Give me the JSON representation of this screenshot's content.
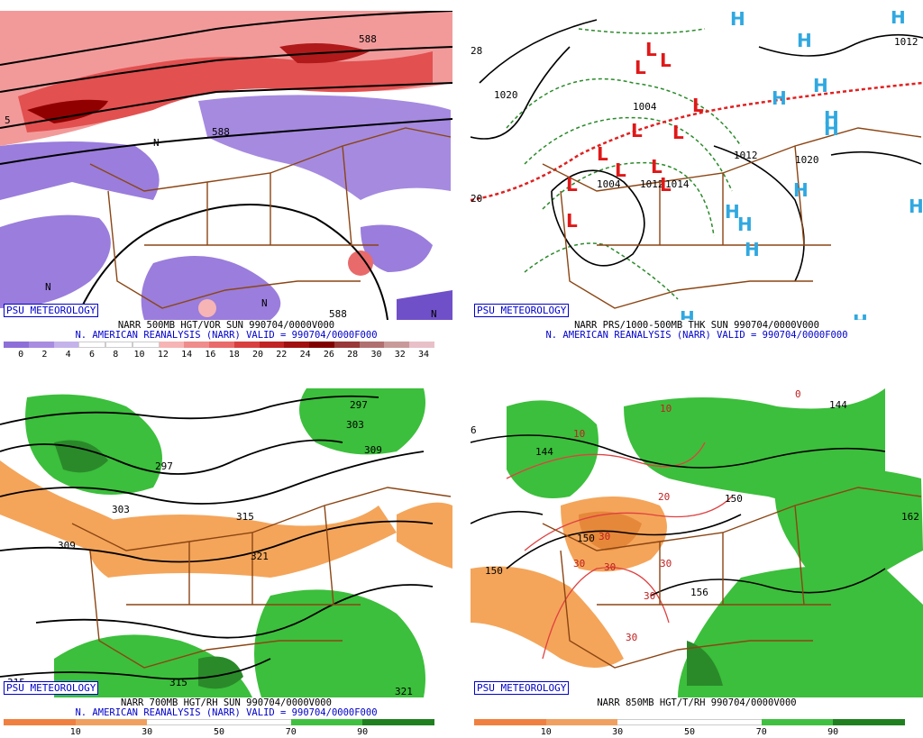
{
  "panels": [
    {
      "badge": "PSU METEOROLOGY",
      "title": "NARR 500MB HGT/VOR SUN 990704/0000V000",
      "subtitle": "N. AMERICAN REANALYSIS (NARR) VALID = 990704/0000F000",
      "contour_labels": [
        "588",
        "588",
        "588",
        "N",
        "N",
        "N",
        "N",
        "5"
      ],
      "colorbar": {
        "colors": [
          "#8e6fd8",
          "#a88ce0",
          "#c4b2ea",
          "#ffffff",
          "#ffffff",
          "#ffffff",
          "#f6b4b4",
          "#ef8c8c",
          "#e96a6a",
          "#d84040",
          "#c02424",
          "#a01010",
          "#800000",
          "#983838",
          "#b07070",
          "#c89a9a",
          "#e8c0c8"
        ],
        "labels": [
          "0",
          "2",
          "4",
          "6",
          "8",
          "10",
          "12",
          "14",
          "16",
          "18",
          "20",
          "22",
          "24",
          "26",
          "28",
          "30",
          "32",
          "34"
        ]
      }
    },
    {
      "badge": "PSU METEOROLOGY",
      "title": "NARR PRS/1000-500MB THK SUN 990704/0000V000",
      "subtitle": "N. AMERICAN REANALYSIS (NARR) VALID = 990704/0000F000",
      "contour_labels": [
        "1020",
        "1012",
        "1012",
        "1020",
        "1004",
        "1004",
        "1012",
        "1014",
        "28",
        "20"
      ],
      "lows": [
        "L",
        "L",
        "L",
        "L",
        "L",
        "L",
        "L",
        "L",
        "L",
        "L",
        "L",
        "L"
      ],
      "highs": [
        "H",
        "H",
        "H",
        "H",
        "H",
        "H",
        "H",
        "H",
        "H",
        "H",
        "H",
        "H",
        "H",
        "H"
      ]
    },
    {
      "badge": "PSU METEOROLOGY",
      "title": "NARR 700MB HGT/RH SUN 990704/0000V000",
      "subtitle": "N. AMERICAN REANALYSIS (NARR) VALID = 990704/0000F000",
      "contour_labels": [
        "297",
        "303",
        "309",
        "297",
        "303",
        "309",
        "315",
        "321",
        "315",
        "315",
        "321"
      ],
      "colorbar": {
        "colors": [
          "#f08040",
          "#f0a060",
          "#ffffff",
          "#ffffff",
          "#40c040",
          "#208020"
        ],
        "labels": [
          "10",
          "30",
          "50",
          "70",
          "90"
        ]
      }
    },
    {
      "badge": "PSU METEOROLOGY",
      "title": "NARR 850MB HGT/T/RH 990704/0000V000",
      "contour_labels": [
        "144",
        "150",
        "150",
        "150",
        "156",
        "162",
        "144",
        "6"
      ],
      "temp_labels": [
        "10",
        "10",
        "20",
        "30",
        "30",
        "30",
        "30",
        "30",
        "30",
        "0"
      ],
      "colorbar": {
        "colors": [
          "#f08040",
          "#f0a060",
          "#ffffff",
          "#ffffff",
          "#40c040",
          "#208020"
        ],
        "labels": [
          "10",
          "30",
          "50",
          "70",
          "90"
        ]
      }
    }
  ]
}
